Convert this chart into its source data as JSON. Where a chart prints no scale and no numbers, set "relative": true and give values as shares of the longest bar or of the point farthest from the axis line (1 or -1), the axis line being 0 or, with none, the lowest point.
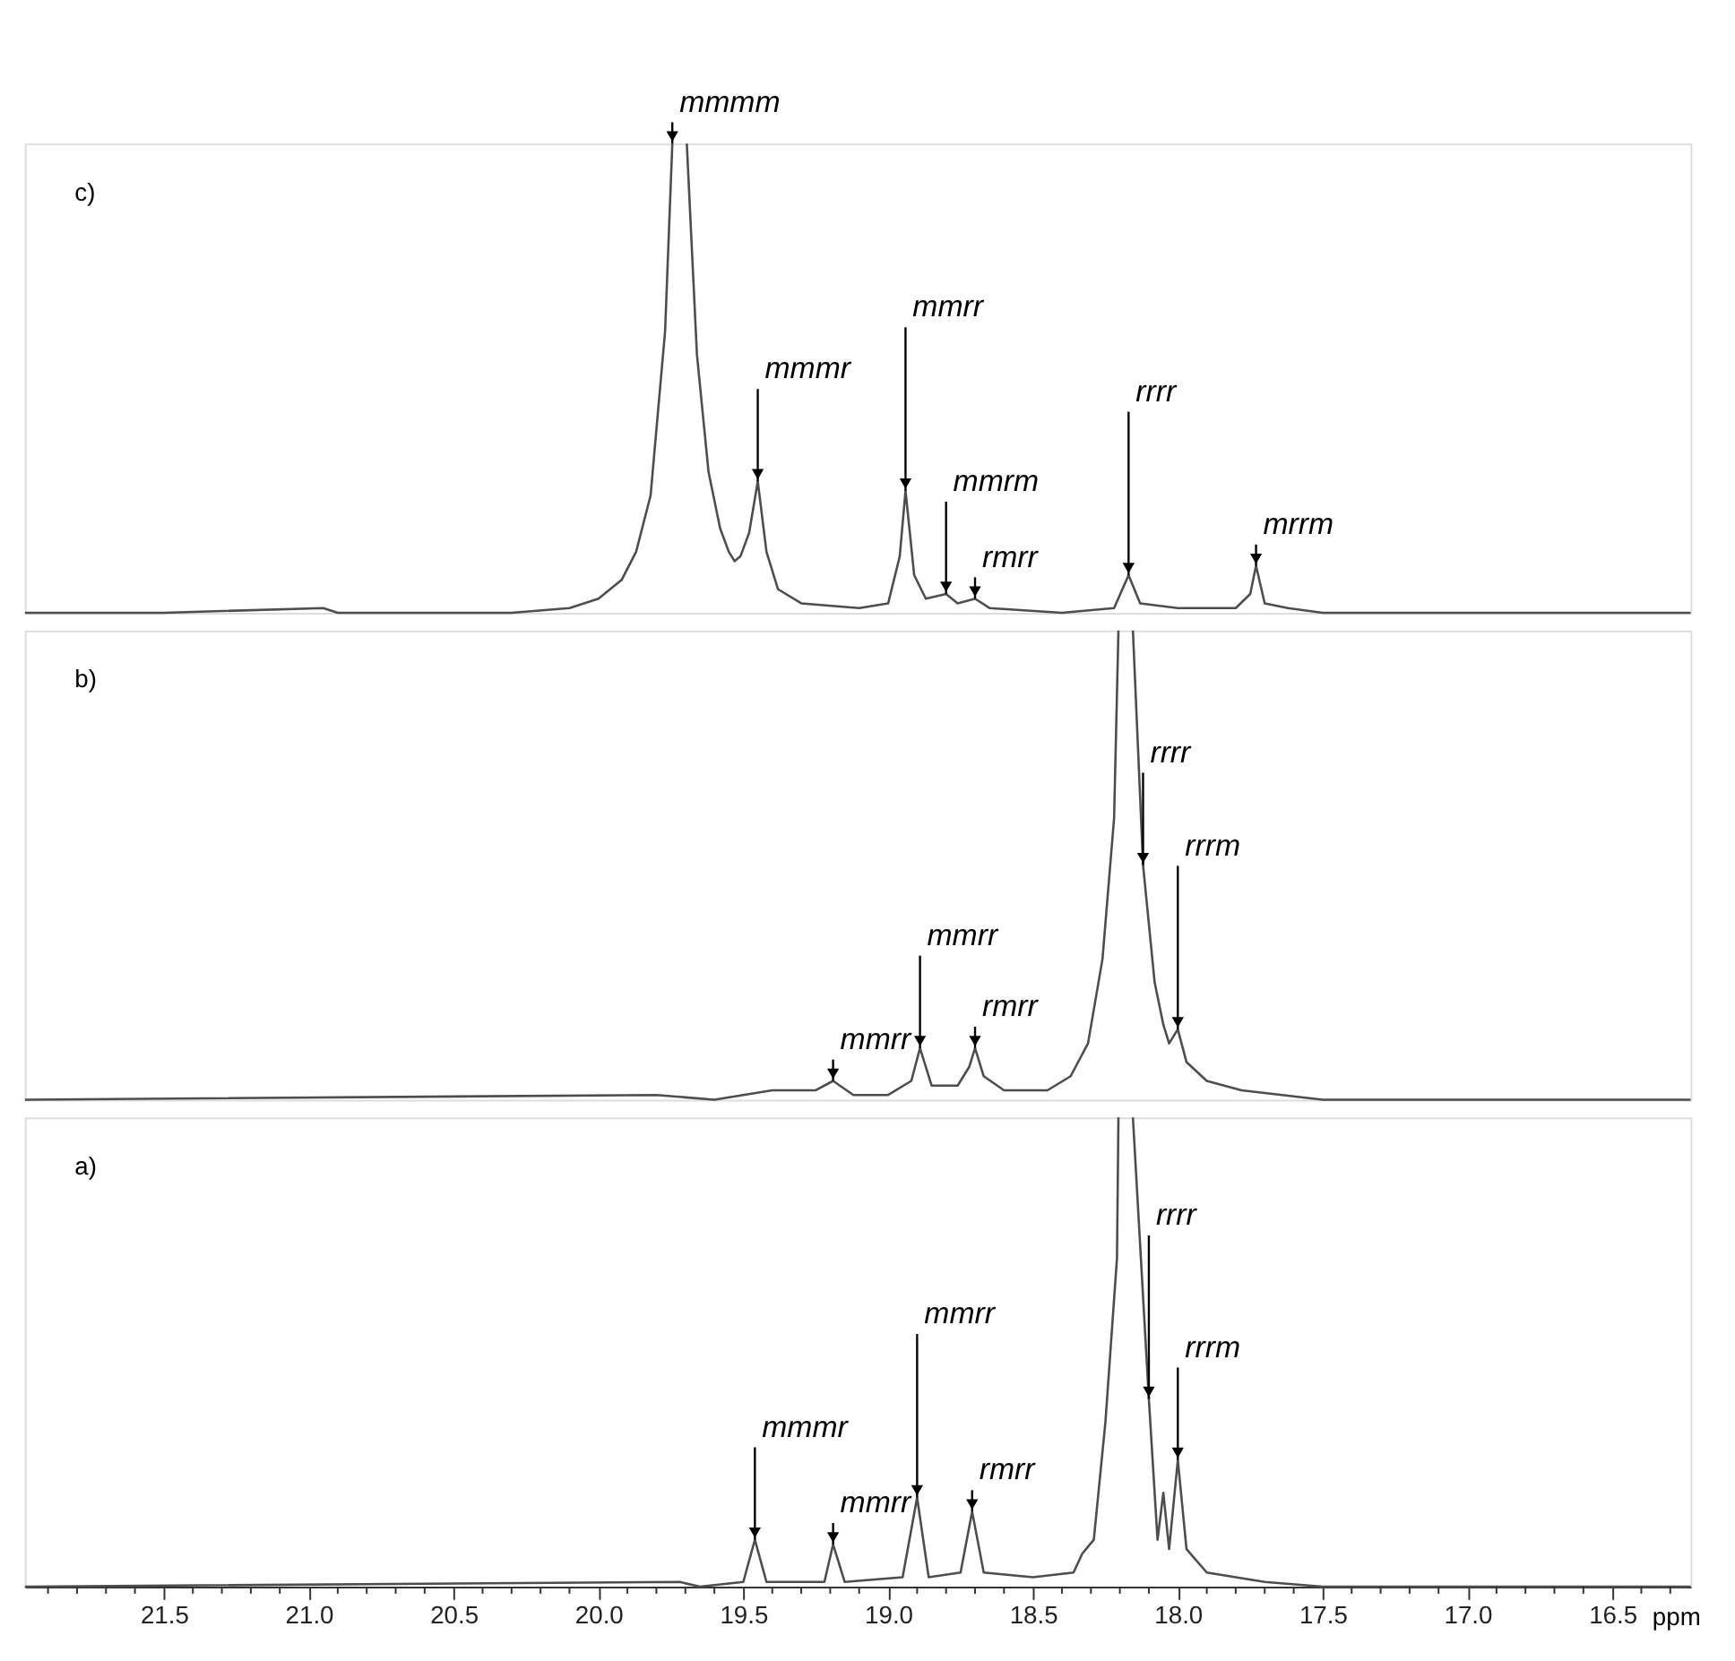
{
  "chart_data": [
    {
      "type": "line",
      "title": "c)",
      "relative": true,
      "tick_labels": false,
      "color": "#4d4d4d",
      "xlim": [
        21.98,
        16.23
      ],
      "x": [
        21.98,
        21.5,
        20.95,
        20.9,
        20.3,
        20.1,
        20.0,
        19.92,
        19.87,
        19.82,
        19.77,
        19.745,
        19.72,
        19.695,
        19.66,
        19.62,
        19.58,
        19.55,
        19.53,
        19.51,
        19.48,
        19.45,
        19.42,
        19.38,
        19.3,
        19.1,
        19.0,
        18.96,
        18.94,
        18.91,
        18.87,
        18.8,
        18.76,
        18.7,
        18.65,
        18.4,
        18.22,
        18.17,
        18.13,
        18.0,
        17.8,
        17.75,
        17.73,
        17.7,
        17.62,
        17.5,
        16.23
      ],
      "values": [
        0,
        0,
        0.01,
        0,
        0,
        0.01,
        0.03,
        0.07,
        0.13,
        0.25,
        0.6,
        1,
        null,
        1,
        0.55,
        0.3,
        0.18,
        0.13,
        0.11,
        0.12,
        0.17,
        0.28,
        0.13,
        0.05,
        0.02,
        0.01,
        0.02,
        0.12,
        0.26,
        0.08,
        0.03,
        0.04,
        0.02,
        0.03,
        0.01,
        0,
        0.01,
        0.08,
        0.02,
        0.01,
        0.01,
        0.04,
        0.1,
        0.02,
        0.01,
        0,
        0
      ],
      "annotations": [
        {
          "text": "mmmm",
          "x": 19.745,
          "y": 1
        },
        {
          "text": "mmmr",
          "x": 19.45,
          "y": 0.28
        },
        {
          "text": "mmrr",
          "x": 18.94,
          "y": 0.26
        },
        {
          "text": "rmrr",
          "x": 18.7,
          "y": 0.03
        },
        {
          "text": "mmrm",
          "x": 18.8,
          "y": 0.04
        },
        {
          "text": "rrrr",
          "x": 18.17,
          "y": 0.08
        },
        {
          "text": "mrrm",
          "x": 17.73,
          "y": 0.1
        }
      ]
    },
    {
      "type": "line",
      "title": "b)",
      "relative": true,
      "tick_labels": false,
      "color": "#4d4d4d",
      "xlim": [
        21.98,
        16.23
      ],
      "x": [
        21.98,
        19.8,
        19.6,
        19.4,
        19.25,
        19.19,
        19.12,
        19.0,
        18.92,
        18.89,
        18.85,
        18.76,
        18.72,
        18.7,
        18.67,
        18.6,
        18.45,
        18.37,
        18.31,
        18.26,
        18.22,
        18.205,
        18.18,
        18.155,
        18.12,
        18.08,
        18.05,
        18.03,
        18.0,
        17.97,
        17.9,
        17.78,
        17.5,
        16.23
      ],
      "values": [
        0,
        0.01,
        0,
        0.02,
        0.02,
        0.04,
        0.01,
        0.01,
        0.04,
        0.11,
        0.03,
        0.03,
        0.07,
        0.11,
        0.05,
        0.02,
        0.02,
        0.05,
        0.12,
        0.3,
        0.6,
        1,
        null,
        1,
        0.5,
        0.25,
        0.16,
        0.12,
        0.15,
        0.08,
        0.04,
        0.02,
        0,
        0
      ],
      "annotations": [
        {
          "text": "mmrr",
          "x": 19.19,
          "y": 0.04
        },
        {
          "text": "mmrr",
          "x": 18.89,
          "y": 0.11
        },
        {
          "text": "rrrm",
          "x": 18.0,
          "y": 0.15
        },
        {
          "text": "rmrr",
          "x": 18.7,
          "y": 0.11
        },
        {
          "text": "rrrr",
          "x": 18.12,
          "y": 0.5
        }
      ]
    },
    {
      "type": "line",
      "title": "a)",
      "relative": true,
      "tick_labels": "x",
      "color": "#4d4d4d",
      "xlim": [
        21.98,
        16.23
      ],
      "xlabel": "ppm",
      "xticks": [
        {
          "value": 21.9,
          "label": null
        },
        {
          "value": 21.8,
          "label": null
        },
        {
          "value": 21.7,
          "label": null
        },
        {
          "value": 21.6,
          "label": null
        },
        {
          "value": 21.5,
          "label": "21.5"
        },
        {
          "value": 21.4,
          "label": null
        },
        {
          "value": 21.3,
          "label": null
        },
        {
          "value": 21.2,
          "label": null
        },
        {
          "value": 21.1,
          "label": null
        },
        {
          "value": 21.0,
          "label": "21.0"
        },
        {
          "value": 20.9,
          "label": null
        },
        {
          "value": 20.8,
          "label": null
        },
        {
          "value": 20.7,
          "label": null
        },
        {
          "value": 20.6,
          "label": null
        },
        {
          "value": 20.5,
          "label": "20.5"
        },
        {
          "value": 20.4,
          "label": null
        },
        {
          "value": 20.3,
          "label": null
        },
        {
          "value": 20.2,
          "label": null
        },
        {
          "value": 20.1,
          "label": null
        },
        {
          "value": 20.0,
          "label": "20.0"
        },
        {
          "value": 19.9,
          "label": null
        },
        {
          "value": 19.8,
          "label": null
        },
        {
          "value": 19.7,
          "label": null
        },
        {
          "value": 19.6,
          "label": null
        },
        {
          "value": 19.5,
          "label": "19.5"
        },
        {
          "value": 19.4,
          "label": null
        },
        {
          "value": 19.3,
          "label": null
        },
        {
          "value": 19.2,
          "label": null
        },
        {
          "value": 19.1,
          "label": null
        },
        {
          "value": 19.0,
          "label": "19.0"
        },
        {
          "value": 18.9,
          "label": null
        },
        {
          "value": 18.8,
          "label": null
        },
        {
          "value": 18.7,
          "label": null
        },
        {
          "value": 18.6,
          "label": null
        },
        {
          "value": 18.5,
          "label": "18.5"
        },
        {
          "value": 18.4,
          "label": null
        },
        {
          "value": 18.3,
          "label": null
        },
        {
          "value": 18.2,
          "label": null
        },
        {
          "value": 18.1,
          "label": null
        },
        {
          "value": 18.0,
          "label": "18.0"
        },
        {
          "value": 17.9,
          "label": null
        },
        {
          "value": 17.8,
          "label": null
        },
        {
          "value": 17.7,
          "label": null
        },
        {
          "value": 17.6,
          "label": null
        },
        {
          "value": 17.5,
          "label": "17.5"
        },
        {
          "value": 17.4,
          "label": null
        },
        {
          "value": 17.3,
          "label": null
        },
        {
          "value": 17.2,
          "label": null
        },
        {
          "value": 17.1,
          "label": null
        },
        {
          "value": 17.0,
          "label": "17.0"
        },
        {
          "value": 16.9,
          "label": null
        },
        {
          "value": 16.8,
          "label": null
        },
        {
          "value": 16.7,
          "label": null
        },
        {
          "value": 16.6,
          "label": null
        },
        {
          "value": 16.5,
          "label": "16.5"
        },
        {
          "value": 16.4,
          "label": null
        },
        {
          "value": 16.3,
          "label": null
        }
      ],
      "x": [
        21.98,
        19.72,
        19.65,
        19.5,
        19.46,
        19.42,
        19.22,
        19.19,
        19.15,
        18.95,
        18.9,
        18.86,
        18.75,
        18.71,
        18.67,
        18.5,
        18.36,
        18.33,
        18.29,
        18.25,
        18.21,
        18.205,
        18.18,
        18.155,
        18.1,
        18.07,
        18.05,
        18.03,
        18.0,
        17.97,
        17.9,
        17.7,
        17.5,
        16.23
      ],
      "values": [
        0,
        0.01,
        0,
        0.01,
        0.1,
        0.01,
        0.01,
        0.09,
        0.01,
        0.02,
        0.19,
        0.02,
        0.03,
        0.16,
        0.03,
        0.02,
        0.03,
        0.07,
        0.1,
        0.35,
        0.7,
        1,
        null,
        1,
        0.4,
        0.1,
        0.2,
        0.08,
        0.27,
        0.08,
        0.03,
        0.01,
        0,
        0
      ],
      "annotations": [
        {
          "text": "mmrr",
          "x": 19.19,
          "y": 0.09
        },
        {
          "text": "mmmr",
          "x": 19.46,
          "y": 0.1
        },
        {
          "text": "mmrr",
          "x": 18.9,
          "y": 0.19
        },
        {
          "text": "rmrr",
          "x": 18.71,
          "y": 0.16
        },
        {
          "text": "rrrm",
          "x": 18.0,
          "y": 0.27
        },
        {
          "text": "rrrr",
          "x": 18.1,
          "y": 0.4
        }
      ]
    }
  ]
}
